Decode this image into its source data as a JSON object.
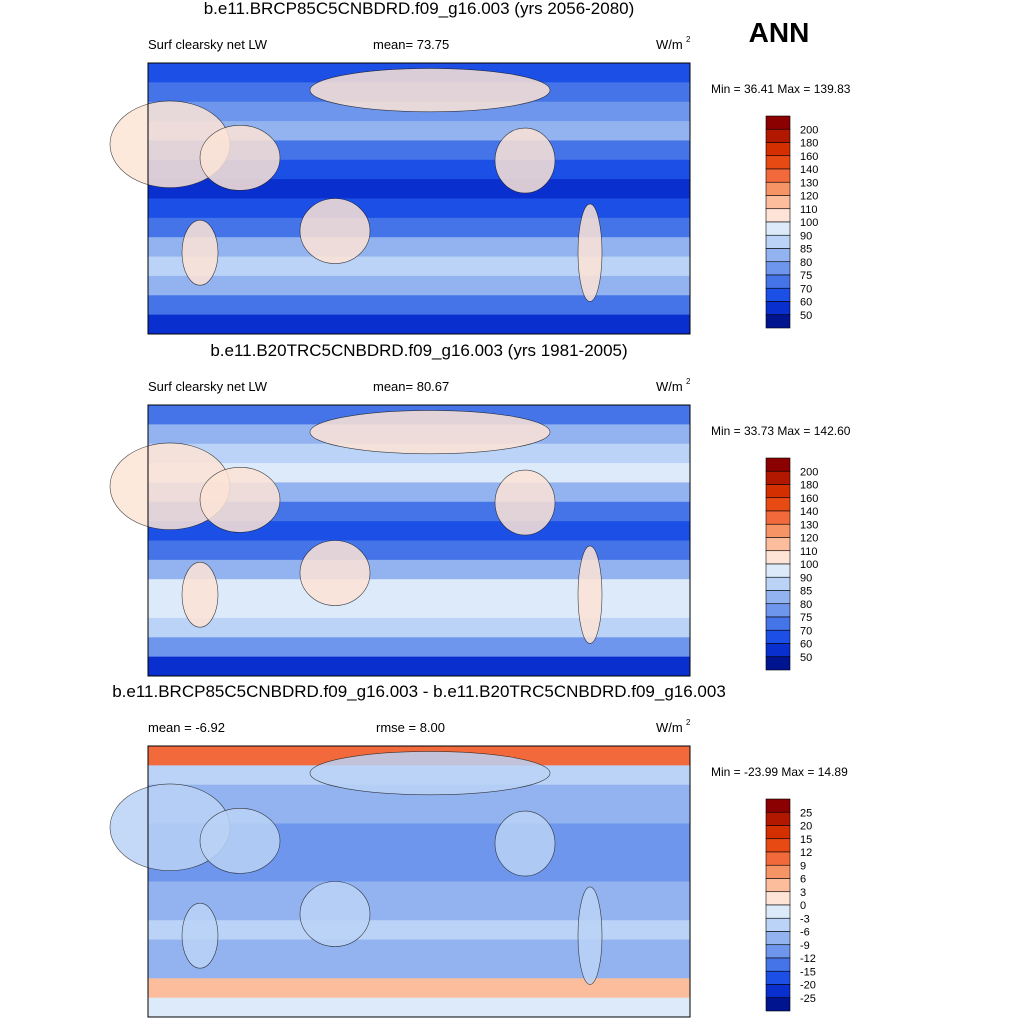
{
  "season": "ANN",
  "panels": [
    {
      "title": "b.e11.BRCP85C5CNBDRD.f09_g16.003 (yrs 2056-2080)",
      "left": "Surf clearsky net LW",
      "center": "mean=  73.75",
      "units": "W/m",
      "units_sup": "2",
      "minmax": "Min =  36.41 Max = 139.83",
      "colorbar": {
        "labels": [
          "200",
          "180",
          "160",
          "140",
          "130",
          "120",
          "110",
          "100",
          "90",
          "85",
          "80",
          "75",
          "70",
          "60",
          "50"
        ],
        "colors": [
          "#8b0000",
          "#b21800",
          "#d42f00",
          "#e84a14",
          "#f26a3c",
          "#f79466",
          "#fbbd9c",
          "#fde4d6",
          "#dceafa",
          "#bad3f6",
          "#92b3f0",
          "#6e96ec",
          "#4574e8",
          "#1c4fe6",
          "#0a2fcf",
          "#00148f"
        ]
      }
    },
    {
      "title": "b.e11.B20TRC5CNBDRD.f09_g16.003 (yrs 1981-2005)",
      "left": "Surf clearsky net LW",
      "center": "mean=  80.67",
      "units": "W/m",
      "units_sup": "2",
      "minmax": "Min =  33.73 Max = 142.60",
      "colorbar": {
        "labels": [
          "200",
          "180",
          "160",
          "140",
          "130",
          "120",
          "110",
          "100",
          "90",
          "85",
          "80",
          "75",
          "70",
          "60",
          "50"
        ],
        "colors": [
          "#8b0000",
          "#b21800",
          "#d42f00",
          "#e84a14",
          "#f26a3c",
          "#f79466",
          "#fbbd9c",
          "#fde4d6",
          "#dceafa",
          "#bad3f6",
          "#92b3f0",
          "#6e96ec",
          "#4574e8",
          "#1c4fe6",
          "#0a2fcf",
          "#00148f"
        ]
      }
    },
    {
      "title": "b.e11.BRCP85C5CNBDRD.f09_g16.003 - b.e11.B20TRC5CNBDRD.f09_g16.003",
      "left": "mean =  -6.92",
      "center": "rmse =   8.00",
      "units": "W/m",
      "units_sup": "2",
      "minmax": "Min = -23.99 Max =  14.89",
      "colorbar": {
        "labels": [
          "25",
          "20",
          "15",
          "12",
          "9",
          "6",
          "3",
          "0",
          "-3",
          "-6",
          "-9",
          "-12",
          "-15",
          "-20",
          "-25"
        ],
        "colors": [
          "#8b0000",
          "#b21800",
          "#d42f00",
          "#e84a14",
          "#f26a3c",
          "#f79466",
          "#fbbd9c",
          "#fde4d6",
          "#dceafa",
          "#bad3f6",
          "#92b3f0",
          "#6e96ec",
          "#4574e8",
          "#1c4fe6",
          "#0a2fcf",
          "#00148f"
        ]
      }
    }
  ]
}
